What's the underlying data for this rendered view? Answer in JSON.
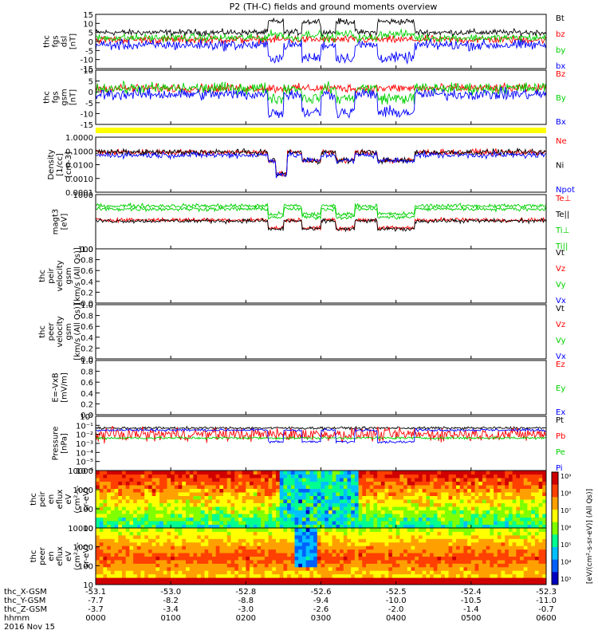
{
  "chart_data": {
    "type": "line",
    "title": "P2 (TH-C) fields and ground moments overview",
    "x_ticks": [
      "0000",
      "0100",
      "0200",
      "0300",
      "0400",
      "0500",
      "0600"
    ],
    "xlim": [
      0,
      6
    ],
    "ephemeris": [
      {
        "label": "thc_X-GSM",
        "values": [
          "-53.1",
          "-53.0",
          "-52.8",
          "-52.6",
          "-52.5",
          "-52.4",
          "-52.3"
        ]
      },
      {
        "label": "thc_Y-GSM",
        "values": [
          "-7.7",
          "-8.2",
          "-8.8",
          "-9.4",
          "-10.0",
          "-10.5",
          "-11.0"
        ]
      },
      {
        "label": "thc_Z-GSM",
        "values": [
          "-3.7",
          "-3.4",
          "-3.0",
          "-2.6",
          "-2.0",
          "-1.4",
          "-0.7"
        ]
      },
      {
        "label": "hhmm",
        "values": []
      }
    ],
    "date_label": "2016 Nov 15",
    "colors": {
      "black": "#000000",
      "red": "#ff0000",
      "green": "#00d000",
      "blue": "#0000ff"
    },
    "panels": [
      {
        "id": "fgs-dsl",
        "ylabel": [
          "thc",
          "fgs",
          "dsl",
          "[nT]"
        ],
        "ylim": [
          -15,
          15
        ],
        "yticks": [
          "15",
          "10",
          "5",
          "0",
          "-5",
          "-10",
          "-15"
        ],
        "scale": "linear",
        "series": [
          {
            "name": "Bt",
            "color": "#000000"
          },
          {
            "name": "bz",
            "color": "#ff0000"
          },
          {
            "name": "by",
            "color": "#00d000"
          },
          {
            "name": "bx",
            "color": "#0000ff"
          }
        ]
      },
      {
        "id": "fgs-gsm",
        "ylabel": [
          "thc",
          "fgs",
          "gsm",
          "[nT]"
        ],
        "ylim": [
          -17,
          10
        ],
        "yticks": [
          "10",
          "5",
          "0",
          "-5",
          "-10",
          "-15"
        ],
        "scale": "linear",
        "series": [
          {
            "name": "Bz",
            "color": "#ff0000"
          },
          {
            "name": "By",
            "color": "#00d000"
          },
          {
            "name": "Bx",
            "color": "#0000ff"
          }
        ]
      },
      {
        "id": "density",
        "ylabel": [
          "Density",
          "[1/cc]",
          "[cm-3]"
        ],
        "ylim": [
          0.0001,
          1
        ],
        "yticks": [
          "1.0000",
          "0.1000",
          "0.0100",
          "0.0010",
          "0.0001"
        ],
        "scale": "log",
        "series": [
          {
            "name": "Ne",
            "color": "#ff0000"
          },
          {
            "name": "Ni",
            "color": "#000000"
          },
          {
            "name": "Npot",
            "color": "#0000ff"
          }
        ]
      },
      {
        "id": "temperature",
        "ylabel": [
          "magt3",
          "[eV]"
        ],
        "ylim": [
          10,
          10000
        ],
        "yticks": [
          "1000",
          "100"
        ],
        "scale": "log",
        "series": [
          {
            "name": "Te⊥",
            "color": "#ff0000"
          },
          {
            "name": "Te||",
            "color": "#000000"
          },
          {
            "name": "Ti⊥",
            "color": "#00d000"
          },
          {
            "name": "Ti||",
            "color": "#00d000"
          }
        ]
      },
      {
        "id": "peir-velocity",
        "ylabel": [
          "thc",
          "peir",
          "velocity",
          "gsm",
          "[km/s (All Qs)]"
        ],
        "ylim": [
          0,
          1
        ],
        "yticks": [
          "1.0",
          "0.8",
          "0.6",
          "0.4",
          "0.2",
          "0.0"
        ],
        "scale": "linear",
        "series": [
          {
            "name": "Vt",
            "color": "#000000"
          },
          {
            "name": "Vz",
            "color": "#ff0000"
          },
          {
            "name": "Vy",
            "color": "#00d000"
          },
          {
            "name": "Vx",
            "color": "#0000ff"
          }
        ]
      },
      {
        "id": "peer-velocity",
        "ylabel": [
          "thc",
          "peer",
          "velocity",
          "gsm",
          "[km/s (All Qs)]"
        ],
        "ylim": [
          0,
          1
        ],
        "yticks": [
          "1.0",
          "0.8",
          "0.6",
          "0.4",
          "0.2",
          "0.0"
        ],
        "scale": "linear",
        "series": [
          {
            "name": "Vt",
            "color": "#000000"
          },
          {
            "name": "Vz",
            "color": "#ff0000"
          },
          {
            "name": "Vy",
            "color": "#00d000"
          },
          {
            "name": "Vx",
            "color": "#0000ff"
          }
        ]
      },
      {
        "id": "e-field",
        "ylabel": [
          "E=-VxB",
          "[mV/m]"
        ],
        "ylim": [
          0,
          1
        ],
        "yticks": [
          "1.0",
          "0.8",
          "0.6",
          "0.4",
          "0.2",
          "0.0"
        ],
        "scale": "linear",
        "series": [
          {
            "name": "Ez",
            "color": "#ff0000"
          },
          {
            "name": "Ey",
            "color": "#00d000"
          },
          {
            "name": "Ex",
            "color": "#0000ff"
          }
        ]
      },
      {
        "id": "pressure",
        "ylabel": [
          "Pressure",
          "[nPa]"
        ],
        "ylim": [
          1e-06,
          1
        ],
        "yticks": [
          "10⁰",
          "10⁻¹",
          "10⁻²",
          "10⁻³",
          "10⁻⁴",
          "10⁻⁵",
          "10⁻⁶"
        ],
        "scale": "log",
        "series": [
          {
            "name": "Pt",
            "color": "#000000"
          },
          {
            "name": "Pb",
            "color": "#ff0000"
          },
          {
            "name": "Pe",
            "color": "#00d000"
          },
          {
            "name": "Pi",
            "color": "#0000ff"
          }
        ]
      },
      {
        "id": "peir-eflux",
        "type": "heatmap",
        "ylabel": [
          "thc",
          "peir",
          "en",
          "eflux",
          "eV",
          "(cm²-s-",
          "sr-eV)"
        ],
        "ylim": [
          5,
          25000
        ],
        "yticks": [
          "10000",
          "1000",
          "100",
          "10"
        ],
        "scale": "log"
      },
      {
        "id": "peer-eflux",
        "type": "heatmap",
        "ylabel": [
          "thc",
          "peer",
          "en",
          "eflux",
          "eV",
          "(cm²-s-",
          "sr-eV)"
        ],
        "ylim": [
          5,
          25000
        ],
        "yticks": [
          "10000",
          "1000",
          "100",
          "10"
        ],
        "scale": "log"
      }
    ],
    "colorbar": {
      "label": "[eV/(cm²-s-sr-eV)] (All Qs)]",
      "ticks": [
        "10⁹",
        "10⁸",
        "10⁷",
        "10⁶",
        "10⁵",
        "10⁴",
        "10³"
      ]
    }
  }
}
